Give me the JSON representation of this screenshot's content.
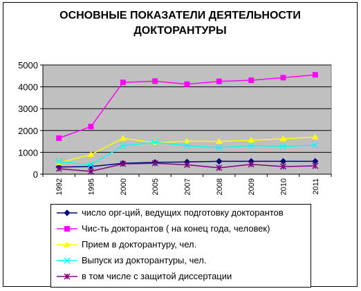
{
  "chart_data": {
    "type": "line",
    "title_lines": [
      "ОСНОВНЫЕ ПОКАЗАТЕЛИ ДЕЯТЕЛЬНОСТИ",
      "ДОКТОРАНТУРЫ"
    ],
    "categories": [
      "1992",
      "1995",
      "2000",
      "2005",
      "2007",
      "2008",
      "2009",
      "2010",
      "2011"
    ],
    "ylim": [
      0,
      5000
    ],
    "yticks": [
      0,
      1000,
      2000,
      3000,
      4000,
      5000
    ],
    "ytick_labels": [
      "0",
      "1000",
      "2000",
      "3000",
      "4000",
      "5000"
    ],
    "grid": "horizontal",
    "plot_background": "#c0c0c0",
    "legend_position": "bottom",
    "series": [
      {
        "name": "число орг-ций, ведущих подготовку докторантов",
        "color": "#000080",
        "marker": "diamond",
        "values": [
          330,
          350,
          500,
          540,
          560,
          590,
          590,
          590,
          590
        ]
      },
      {
        "name": "Чис-ть докторантов ( на конец года, человек)",
        "color": "#ff00ff",
        "marker": "square",
        "values": [
          1650,
          2180,
          4200,
          4260,
          4120,
          4250,
          4300,
          4420,
          4550
        ]
      },
      {
        "name": "Прием в докторантуру, чел.",
        "color": "#ffff00",
        "marker": "triangle",
        "values": [
          520,
          900,
          1640,
          1440,
          1510,
          1500,
          1550,
          1620,
          1700
        ]
      },
      {
        "name": "Выпуск из докторантуры, чел.",
        "color": "#00ffff",
        "marker": "x",
        "values": [
          580,
          430,
          1300,
          1460,
          1310,
          1210,
          1310,
          1270,
          1330
        ]
      },
      {
        "name": "в том числе с защитой диссертации",
        "color": "#800080",
        "marker": "star",
        "values": [
          250,
          130,
          470,
          500,
          430,
          290,
          450,
          350,
          380
        ]
      }
    ]
  }
}
